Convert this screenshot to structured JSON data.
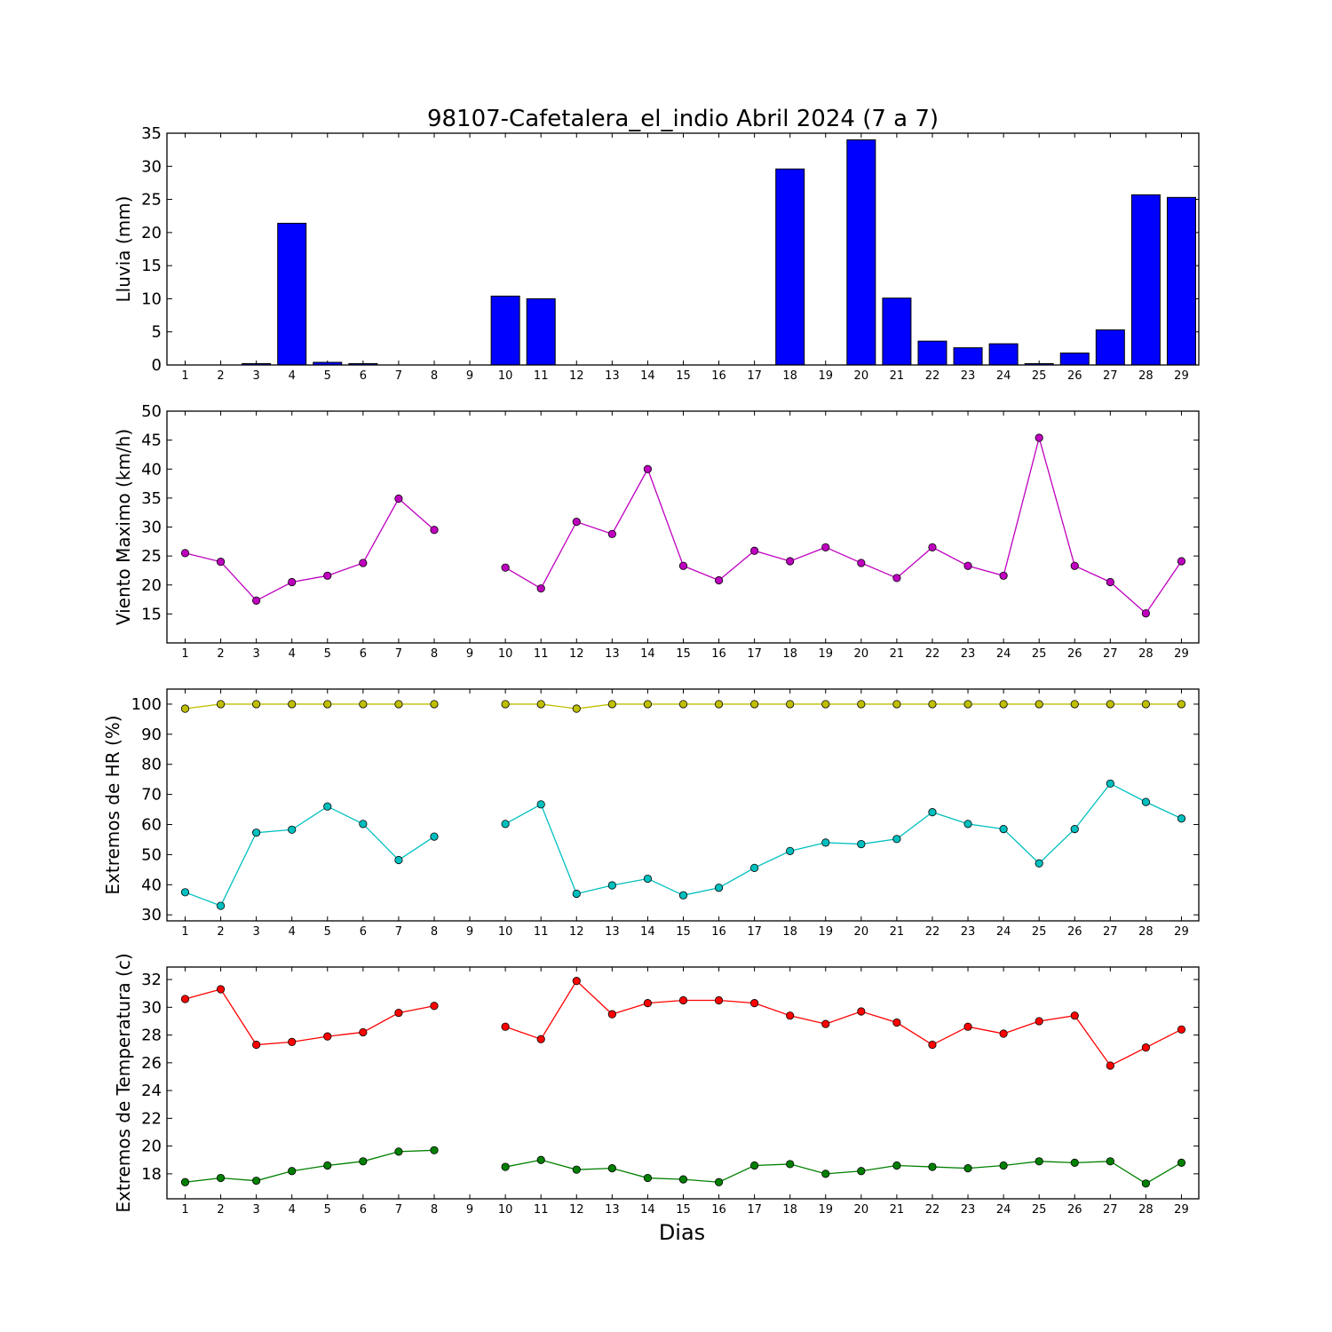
{
  "title": "98107-Cafetalera_el_indio Abril 2024  (7 a 7)",
  "xlabel": "Dias",
  "chart_data": [
    {
      "type": "bar",
      "ylabel": "Lluvia (mm)",
      "ylim": [
        0,
        35
      ],
      "yticks": [
        0,
        5,
        10,
        15,
        20,
        25,
        30,
        35
      ],
      "x": [
        1,
        2,
        3,
        4,
        5,
        6,
        7,
        8,
        9,
        10,
        11,
        12,
        13,
        14,
        15,
        16,
        17,
        18,
        19,
        20,
        21,
        22,
        23,
        24,
        25,
        26,
        27,
        28,
        29
      ],
      "series": [
        {
          "color": "#0000ff",
          "values": [
            0,
            0,
            0.2,
            21.4,
            0.4,
            0.2,
            0,
            0,
            0,
            10.4,
            10,
            0,
            0,
            0,
            0,
            0,
            0,
            29.6,
            0,
            34,
            10.1,
            3.6,
            2.6,
            3.2,
            0.2,
            1.8,
            5.3,
            25.7,
            25.3
          ]
        }
      ]
    },
    {
      "type": "line",
      "ylabel": "Viento Maximo (km/h)",
      "ylim": [
        10,
        50
      ],
      "yticks": [
        15,
        20,
        25,
        30,
        35,
        40,
        45,
        50
      ],
      "x": [
        1,
        2,
        3,
        4,
        5,
        6,
        7,
        8,
        9,
        10,
        11,
        12,
        13,
        14,
        15,
        16,
        17,
        18,
        19,
        20,
        21,
        22,
        23,
        24,
        25,
        26,
        27,
        28,
        29
      ],
      "series": [
        {
          "color": "#bf00bf",
          "values": [
            25.5,
            24,
            17.3,
            20.5,
            21.6,
            23.8,
            34.9,
            29.5,
            null,
            23,
            19.4,
            30.9,
            28.8,
            40,
            23.3,
            20.8,
            25.9,
            24.1,
            26.5,
            23.8,
            21.2,
            26.5,
            23.3,
            21.6,
            45.4,
            23.3,
            20.5,
            15.1,
            24.1
          ]
        }
      ]
    },
    {
      "type": "line",
      "ylabel": "Extremos de HR (%)",
      "ylim": [
        28,
        105
      ],
      "yticks": [
        30,
        40,
        50,
        60,
        70,
        80,
        90,
        100
      ],
      "x": [
        1,
        2,
        3,
        4,
        5,
        6,
        7,
        8,
        9,
        10,
        11,
        12,
        13,
        14,
        15,
        16,
        17,
        18,
        19,
        20,
        21,
        22,
        23,
        24,
        25,
        26,
        27,
        28,
        29
      ],
      "series": [
        {
          "color": "#bfbf00",
          "values": [
            98.5,
            100,
            100,
            100,
            100,
            100,
            100,
            100,
            null,
            100,
            100,
            98.5,
            100,
            100,
            100,
            100,
            100,
            100,
            100,
            100,
            100,
            100,
            100,
            100,
            100,
            100,
            100,
            100,
            100
          ]
        },
        {
          "color": "#00bfbf",
          "values": [
            37.5,
            33,
            57.3,
            58.3,
            66,
            60.2,
            48.2,
            56,
            null,
            60.2,
            66.7,
            37,
            39.8,
            42,
            36.5,
            39,
            45.6,
            51.2,
            54,
            53.5,
            55.2,
            64.1,
            60.2,
            58.5,
            47.1,
            58.5,
            73.6,
            67.5,
            62
          ]
        }
      ]
    },
    {
      "type": "line",
      "ylabel": "Extremos de Temperatura (c)",
      "ylim": [
        16.2,
        32.9
      ],
      "yticks": [
        18,
        20,
        22,
        24,
        26,
        28,
        30,
        32
      ],
      "x": [
        1,
        2,
        3,
        4,
        5,
        6,
        7,
        8,
        9,
        10,
        11,
        12,
        13,
        14,
        15,
        16,
        17,
        18,
        19,
        20,
        21,
        22,
        23,
        24,
        25,
        26,
        27,
        28,
        29
      ],
      "series": [
        {
          "color": "#ff0000",
          "values": [
            30.6,
            31.3,
            27.3,
            27.5,
            27.9,
            28.2,
            29.6,
            30.1,
            null,
            28.6,
            27.7,
            31.9,
            29.5,
            30.3,
            30.5,
            30.5,
            30.3,
            29.4,
            28.8,
            29.7,
            28.9,
            27.3,
            28.6,
            28.1,
            29,
            29.4,
            25.8,
            27.1,
            28.4
          ]
        },
        {
          "color": "#008000",
          "values": [
            17.4,
            17.7,
            17.5,
            18.2,
            18.6,
            18.9,
            19.6,
            19.7,
            null,
            18.5,
            19,
            18.3,
            18.4,
            17.7,
            17.6,
            17.4,
            18.6,
            18.7,
            18,
            18.2,
            18.6,
            18.5,
            18.4,
            18.6,
            18.9,
            18.8,
            18.9,
            17.3,
            18.8
          ]
        }
      ]
    }
  ]
}
